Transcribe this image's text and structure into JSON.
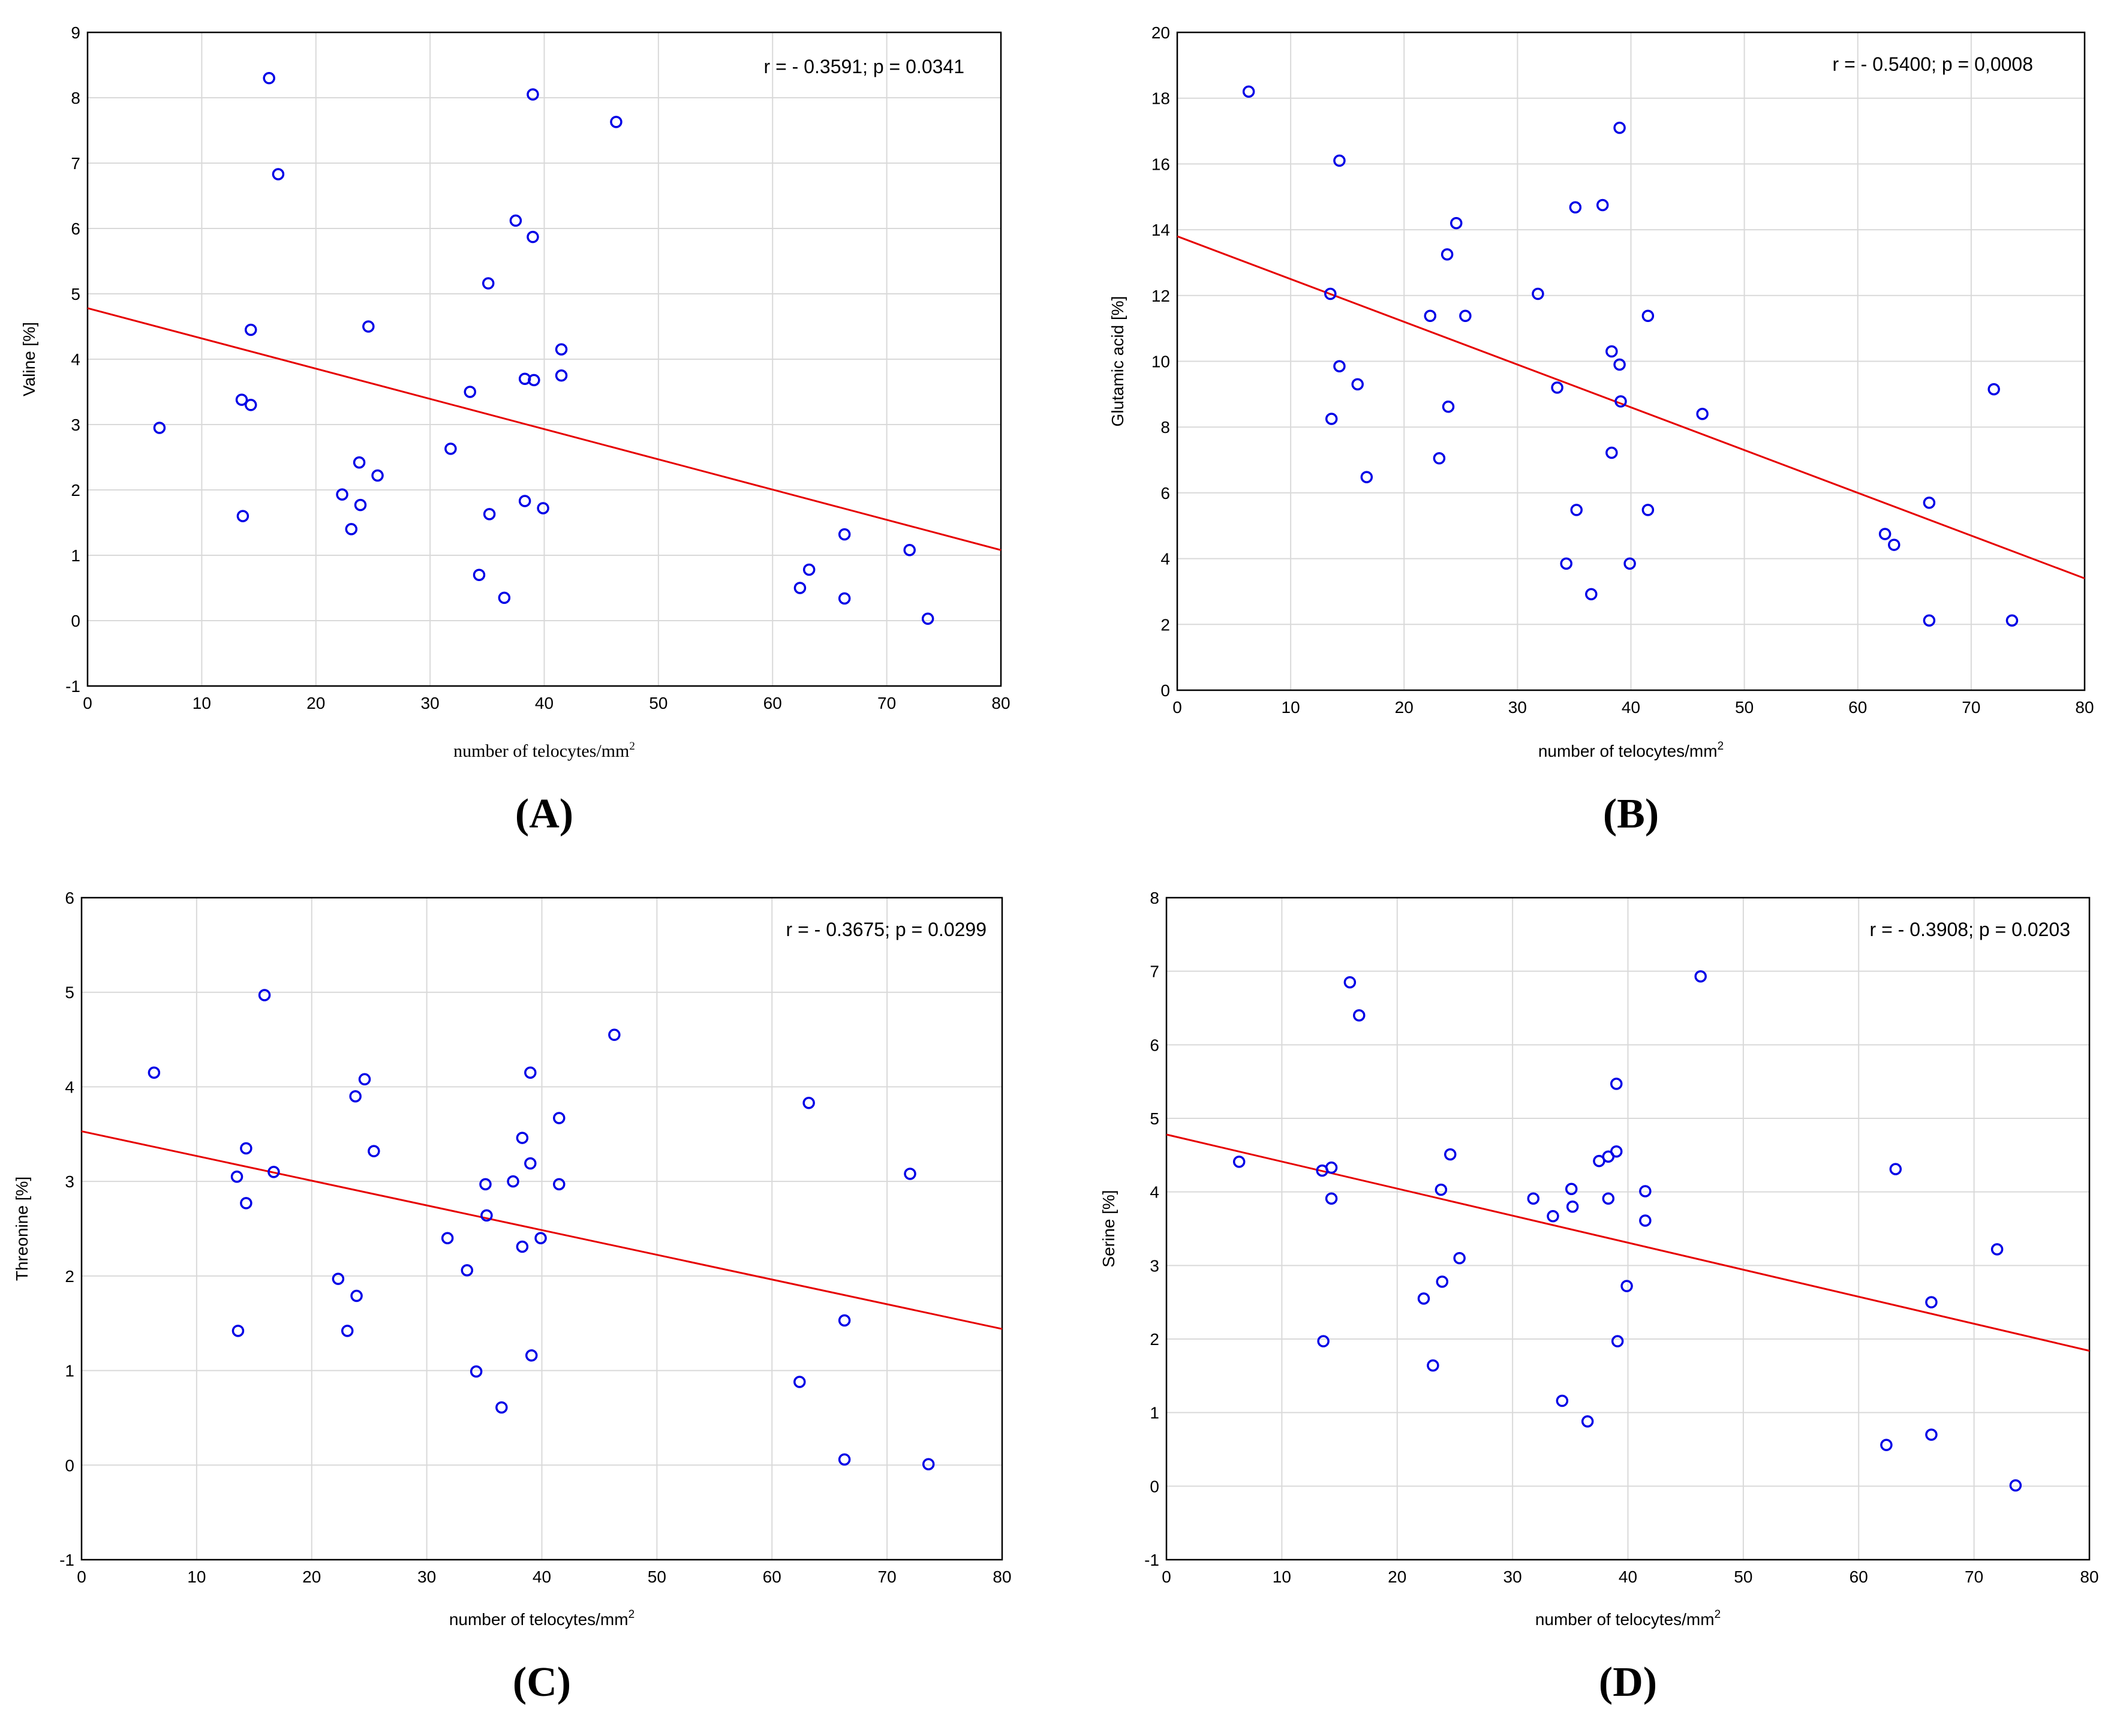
{
  "chart_data": [
    {
      "type": "scatter",
      "panel_label": "(A)",
      "ylabel": "Valine [%]",
      "xlabel": "number of telocytes/mm",
      "xlabel_sup": "2",
      "xlabel_style": "serif",
      "annotation": "r = - 0.3591; p = 0.0341",
      "xlim": [
        0,
        80
      ],
      "ylim": [
        -1,
        9
      ],
      "xticks": [
        "0",
        "10",
        "20",
        "30",
        "40",
        "50",
        "60",
        "70",
        "80"
      ],
      "yticks": [
        "-1",
        "0",
        "1",
        "2",
        "3",
        "4",
        "5",
        "6",
        "7",
        "8",
        "9"
      ],
      "grid": true,
      "fit_line": {
        "x": [
          0,
          80
        ],
        "y": [
          4.78,
          1.08
        ]
      },
      "points": [
        {
          "x": 6.3,
          "y": 2.95
        },
        {
          "x": 13.5,
          "y": 3.38
        },
        {
          "x": 13.6,
          "y": 1.6
        },
        {
          "x": 14.3,
          "y": 4.45
        },
        {
          "x": 14.3,
          "y": 3.3
        },
        {
          "x": 15.9,
          "y": 8.3
        },
        {
          "x": 16.7,
          "y": 6.83
        },
        {
          "x": 22.3,
          "y": 1.93
        },
        {
          "x": 23.1,
          "y": 1.4
        },
        {
          "x": 23.8,
          "y": 2.42
        },
        {
          "x": 23.9,
          "y": 1.77
        },
        {
          "x": 24.6,
          "y": 4.5
        },
        {
          "x": 25.4,
          "y": 2.22
        },
        {
          "x": 31.8,
          "y": 2.63
        },
        {
          "x": 33.5,
          "y": 3.5
        },
        {
          "x": 34.3,
          "y": 0.7
        },
        {
          "x": 35.1,
          "y": 5.16
        },
        {
          "x": 35.2,
          "y": 1.63
        },
        {
          "x": 36.5,
          "y": 0.35
        },
        {
          "x": 37.5,
          "y": 6.12
        },
        {
          "x": 38.3,
          "y": 3.7
        },
        {
          "x": 38.3,
          "y": 1.83
        },
        {
          "x": 39.0,
          "y": 8.05
        },
        {
          "x": 39.0,
          "y": 5.87
        },
        {
          "x": 39.1,
          "y": 3.68
        },
        {
          "x": 39.9,
          "y": 1.72
        },
        {
          "x": 41.5,
          "y": 4.15
        },
        {
          "x": 41.5,
          "y": 3.75
        },
        {
          "x": 46.3,
          "y": 7.63
        },
        {
          "x": 62.4,
          "y": 0.5
        },
        {
          "x": 63.2,
          "y": 0.78
        },
        {
          "x": 66.3,
          "y": 1.32
        },
        {
          "x": 66.3,
          "y": 0.34
        },
        {
          "x": 72.0,
          "y": 1.08
        },
        {
          "x": 73.6,
          "y": 0.03
        }
      ]
    },
    {
      "type": "scatter",
      "panel_label": "(B)",
      "ylabel": "Glutamic acid [%]",
      "xlabel": "number of telocytes/mm",
      "xlabel_sup": "2",
      "xlabel_style": "sans",
      "annotation": "r = - 0.5400; p = 0,0008",
      "xlim": [
        0,
        80
      ],
      "ylim": [
        0,
        20
      ],
      "xticks": [
        "0",
        "10",
        "20",
        "30",
        "40",
        "50",
        "60",
        "70",
        "80"
      ],
      "yticks": [
        "0",
        "2",
        "4",
        "6",
        "8",
        "10",
        "12",
        "14",
        "16",
        "18",
        "20"
      ],
      "grid": true,
      "fit_line": {
        "x": [
          0,
          80
        ],
        "y": [
          13.8,
          3.4
        ]
      },
      "points": [
        {
          "x": 6.3,
          "y": 18.2
        },
        {
          "x": 13.5,
          "y": 12.05
        },
        {
          "x": 13.6,
          "y": 8.25
        },
        {
          "x": 14.3,
          "y": 16.1
        },
        {
          "x": 14.3,
          "y": 9.85
        },
        {
          "x": 15.9,
          "y": 9.3
        },
        {
          "x": 16.7,
          "y": 6.48
        },
        {
          "x": 22.3,
          "y": 11.38
        },
        {
          "x": 23.1,
          "y": 7.05
        },
        {
          "x": 23.8,
          "y": 13.25
        },
        {
          "x": 23.9,
          "y": 8.62
        },
        {
          "x": 24.6,
          "y": 14.2
        },
        {
          "x": 25.4,
          "y": 11.38
        },
        {
          "x": 31.8,
          "y": 12.05
        },
        {
          "x": 33.5,
          "y": 9.2
        },
        {
          "x": 34.3,
          "y": 3.85
        },
        {
          "x": 35.1,
          "y": 14.68
        },
        {
          "x": 35.2,
          "y": 5.48
        },
        {
          "x": 36.5,
          "y": 2.92
        },
        {
          "x": 37.5,
          "y": 14.75
        },
        {
          "x": 38.3,
          "y": 10.3
        },
        {
          "x": 38.3,
          "y": 7.22
        },
        {
          "x": 39.0,
          "y": 17.1
        },
        {
          "x": 39.0,
          "y": 9.9
        },
        {
          "x": 39.1,
          "y": 8.78
        },
        {
          "x": 39.9,
          "y": 3.85
        },
        {
          "x": 41.5,
          "y": 11.38
        },
        {
          "x": 41.5,
          "y": 5.48
        },
        {
          "x": 46.3,
          "y": 8.4
        },
        {
          "x": 62.4,
          "y": 4.75
        },
        {
          "x": 63.2,
          "y": 4.42
        },
        {
          "x": 66.3,
          "y": 5.7
        },
        {
          "x": 66.3,
          "y": 2.12
        },
        {
          "x": 72.0,
          "y": 9.15
        },
        {
          "x": 73.6,
          "y": 2.12
        }
      ]
    },
    {
      "type": "scatter",
      "panel_label": "(C)",
      "ylabel": "Threonine [%]",
      "xlabel": "number of telocytes/mm",
      "xlabel_sup": "2",
      "xlabel_style": "sans",
      "annotation": "r = - 0.3675; p = 0.0299",
      "xlim": [
        0,
        80
      ],
      "ylim": [
        -1,
        6
      ],
      "xticks": [
        "0",
        "10",
        "20",
        "30",
        "40",
        "50",
        "60",
        "70",
        "80"
      ],
      "yticks": [
        "-1",
        "0",
        "1",
        "2",
        "3",
        "4",
        "5",
        "6"
      ],
      "grid": true,
      "fit_line": {
        "x": [
          0,
          80
        ],
        "y": [
          3.53,
          1.44
        ]
      },
      "points": [
        {
          "x": 6.3,
          "y": 4.15
        },
        {
          "x": 13.5,
          "y": 3.05
        },
        {
          "x": 13.6,
          "y": 1.42
        },
        {
          "x": 14.3,
          "y": 3.35
        },
        {
          "x": 14.3,
          "y": 2.77
        },
        {
          "x": 15.9,
          "y": 4.97
        },
        {
          "x": 16.7,
          "y": 3.1
        },
        {
          "x": 22.3,
          "y": 1.97
        },
        {
          "x": 23.1,
          "y": 1.42
        },
        {
          "x": 23.8,
          "y": 3.9
        },
        {
          "x": 23.9,
          "y": 1.79
        },
        {
          "x": 24.6,
          "y": 4.08
        },
        {
          "x": 25.4,
          "y": 3.32
        },
        {
          "x": 31.8,
          "y": 2.4
        },
        {
          "x": 33.5,
          "y": 2.06
        },
        {
          "x": 34.3,
          "y": 0.99
        },
        {
          "x": 35.1,
          "y": 2.97
        },
        {
          "x": 35.2,
          "y": 2.64
        },
        {
          "x": 36.5,
          "y": 0.61
        },
        {
          "x": 37.5,
          "y": 3.0
        },
        {
          "x": 38.3,
          "y": 3.46
        },
        {
          "x": 38.3,
          "y": 2.31
        },
        {
          "x": 39.0,
          "y": 4.15
        },
        {
          "x": 39.0,
          "y": 3.19
        },
        {
          "x": 39.1,
          "y": 1.16
        },
        {
          "x": 39.9,
          "y": 2.4
        },
        {
          "x": 41.5,
          "y": 3.67
        },
        {
          "x": 41.5,
          "y": 2.97
        },
        {
          "x": 46.3,
          "y": 4.55
        },
        {
          "x": 62.4,
          "y": 0.88
        },
        {
          "x": 63.2,
          "y": 3.83
        },
        {
          "x": 66.3,
          "y": 1.53
        },
        {
          "x": 66.3,
          "y": 0.06
        },
        {
          "x": 72.0,
          "y": 3.08
        },
        {
          "x": 73.6,
          "y": 0.01
        }
      ]
    },
    {
      "type": "scatter",
      "panel_label": "(D)",
      "ylabel": "Serine [%]",
      "xlabel": "number of telocytes/mm",
      "xlabel_sup": "2",
      "xlabel_style": "sans",
      "annotation": "r = - 0.3908; p = 0.0203",
      "xlim": [
        0,
        80
      ],
      "ylim": [
        -1,
        8
      ],
      "xticks": [
        "0",
        "10",
        "20",
        "30",
        "40",
        "50",
        "60",
        "70",
        "80"
      ],
      "yticks": [
        "-1",
        "0",
        "1",
        "2",
        "3",
        "4",
        "5",
        "6",
        "7",
        "8"
      ],
      "grid": true,
      "fit_line": {
        "x": [
          0,
          80
        ],
        "y": [
          4.78,
          1.84
        ]
      },
      "points": [
        {
          "x": 6.3,
          "y": 4.41
        },
        {
          "x": 13.5,
          "y": 4.29
        },
        {
          "x": 13.6,
          "y": 1.97
        },
        {
          "x": 14.3,
          "y": 4.33
        },
        {
          "x": 14.3,
          "y": 3.91
        },
        {
          "x": 15.9,
          "y": 6.85
        },
        {
          "x": 16.7,
          "y": 6.4
        },
        {
          "x": 22.3,
          "y": 2.55
        },
        {
          "x": 23.1,
          "y": 1.64
        },
        {
          "x": 23.8,
          "y": 4.03
        },
        {
          "x": 23.9,
          "y": 2.78
        },
        {
          "x": 24.6,
          "y": 4.51
        },
        {
          "x": 25.4,
          "y": 3.1
        },
        {
          "x": 31.8,
          "y": 3.91
        },
        {
          "x": 33.5,
          "y": 3.67
        },
        {
          "x": 34.3,
          "y": 1.16
        },
        {
          "x": 35.1,
          "y": 4.04
        },
        {
          "x": 35.2,
          "y": 3.8
        },
        {
          "x": 36.5,
          "y": 0.88
        },
        {
          "x": 37.5,
          "y": 4.42
        },
        {
          "x": 38.3,
          "y": 4.48
        },
        {
          "x": 38.3,
          "y": 3.91
        },
        {
          "x": 39.0,
          "y": 5.47
        },
        {
          "x": 39.0,
          "y": 4.55
        },
        {
          "x": 39.1,
          "y": 1.97
        },
        {
          "x": 39.9,
          "y": 2.72
        },
        {
          "x": 41.5,
          "y": 4.01
        },
        {
          "x": 41.5,
          "y": 3.61
        },
        {
          "x": 46.3,
          "y": 6.93
        },
        {
          "x": 62.4,
          "y": 0.56
        },
        {
          "x": 63.2,
          "y": 4.31
        },
        {
          "x": 66.3,
          "y": 2.5
        },
        {
          "x": 66.3,
          "y": 0.7
        },
        {
          "x": 72.0,
          "y": 3.22
        },
        {
          "x": 73.6,
          "y": 0.01
        }
      ]
    }
  ]
}
